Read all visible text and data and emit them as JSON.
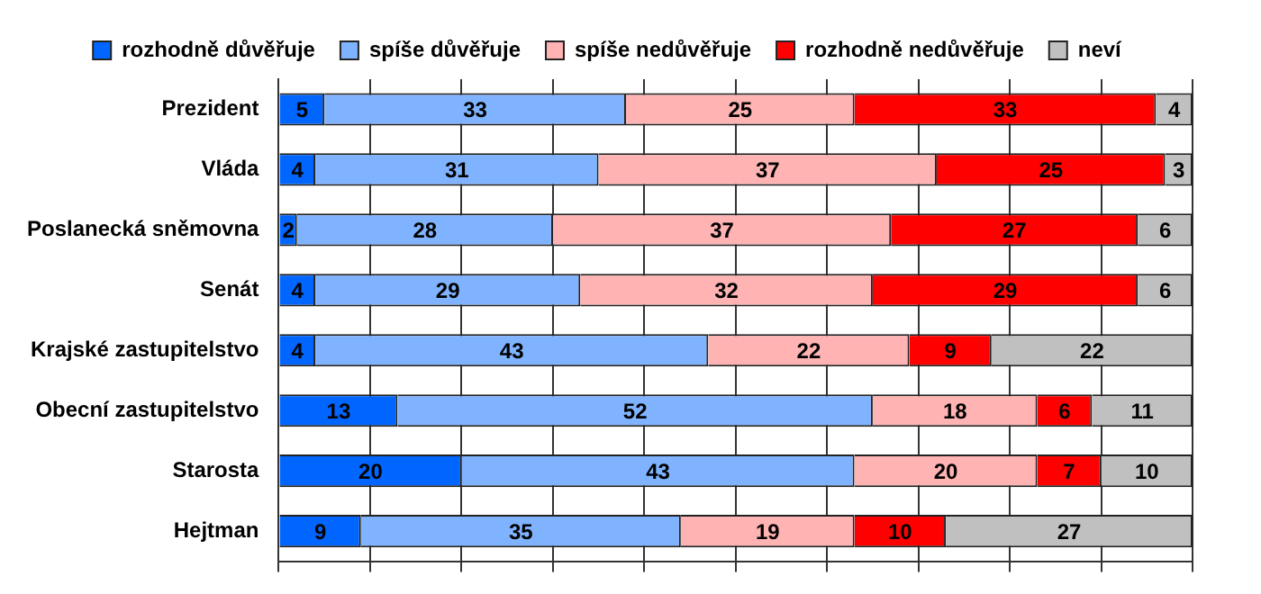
{
  "chart_data": {
    "type": "bar",
    "orientation": "horizontal",
    "stacked": true,
    "data_labels": true,
    "legend": "top",
    "grid": "x",
    "tick_labels": "y",
    "categories": [
      "Prezident",
      "Vláda",
      "Poslanecká sněmovna",
      "Senát",
      "Krajské zastupitelstvo",
      "Obecní zastupitelstvo",
      "Starosta",
      "Hejtman"
    ],
    "xlim": [
      0,
      100
    ],
    "xticks": [
      {
        "value": 0,
        "label": null
      },
      {
        "value": 10,
        "label": null
      },
      {
        "value": 20,
        "label": null
      },
      {
        "value": 30,
        "label": null
      },
      {
        "value": 40,
        "label": null
      },
      {
        "value": 50,
        "label": null
      },
      {
        "value": 60,
        "label": null
      },
      {
        "value": 70,
        "label": null
      },
      {
        "value": 80,
        "label": null
      },
      {
        "value": 90,
        "label": null
      },
      {
        "value": 100,
        "label": null
      }
    ],
    "series": [
      {
        "name": "rozhodně důvěřuje",
        "color": "#0066ff",
        "values": [
          5,
          4,
          2,
          4,
          4,
          13,
          20,
          9
        ]
      },
      {
        "name": "spíše důvěřuje",
        "color": "#80b3ff",
        "values": [
          33,
          31,
          28,
          29,
          43,
          52,
          43,
          35
        ]
      },
      {
        "name": "spíše nedůvěřuje",
        "color": "#ffb3b3",
        "values": [
          25,
          37,
          37,
          32,
          22,
          18,
          20,
          19
        ]
      },
      {
        "name": "rozhodně nedůvěřuje",
        "color": "#ff0000",
        "values": [
          33,
          25,
          27,
          29,
          9,
          6,
          7,
          10
        ]
      },
      {
        "name": "neví",
        "color": "#c0c0c0",
        "values": [
          4,
          3,
          6,
          6,
          22,
          11,
          10,
          27
        ]
      }
    ]
  }
}
